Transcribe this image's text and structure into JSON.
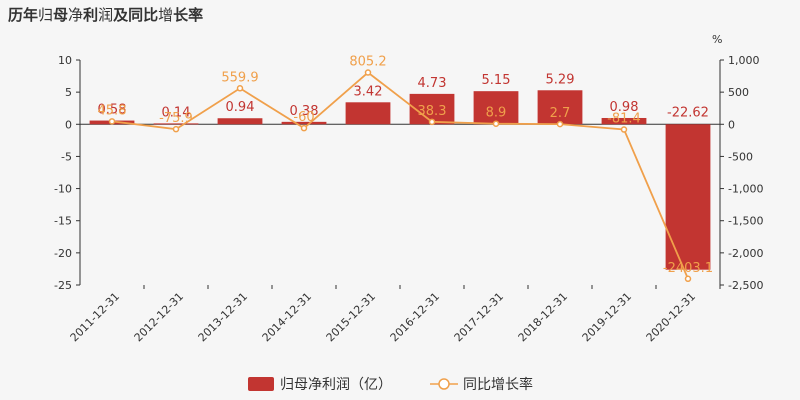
{
  "chart_data": {
    "type": "bar+line",
    "title_parts": [
      {
        "text": "历年",
        "bold": true
      },
      {
        "text": "归",
        "bold": false
      },
      {
        "text": "母",
        "bold": true
      },
      {
        "text": "净",
        "bold": false
      },
      {
        "text": "利",
        "bold": true
      },
      {
        "text": "润",
        "bold": false
      },
      {
        "text": "及同比",
        "bold": true
      },
      {
        "text": "增",
        "bold": false
      },
      {
        "text": "长率",
        "bold": true
      }
    ],
    "categories": [
      "2011-12-31",
      "2012-12-31",
      "2013-12-31",
      "2014-12-31",
      "2015-12-31",
      "2016-12-31",
      "2017-12-31",
      "2018-12-31",
      "2019-12-31",
      "2020-12-31"
    ],
    "series": [
      {
        "name": "归母净利润（亿）",
        "type": "bar",
        "axis": "left",
        "color": "#c23531",
        "values": [
          0.58,
          0.14,
          0.94,
          0.38,
          3.42,
          4.73,
          5.15,
          5.29,
          0.98,
          -22.62
        ],
        "labels": [
          "0.58",
          "0.14",
          "0.94",
          "0.38",
          "3.42",
          "4.73",
          "5.15",
          "5.29",
          "0.98",
          "-22.62"
        ]
      },
      {
        "name": "同比增长率",
        "type": "line",
        "axis": "right",
        "color": "#f0a04b",
        "values": [
          45.8,
          -75.9,
          559.9,
          -60,
          805.2,
          38.3,
          8.9,
          2.7,
          -81.4,
          -2403.1
        ],
        "labels": [
          "45.8",
          "-75.9",
          "559.9",
          "-60",
          "805.2",
          "38.3",
          "8.9",
          "2.7",
          "-81.4",
          "-2403.1"
        ]
      }
    ],
    "y_left": {
      "range": [
        -25,
        10
      ],
      "ticks": [
        "10",
        "5",
        "0",
        "-5",
        "-10",
        "-15",
        "-20",
        "-25"
      ],
      "tick_values": [
        10,
        5,
        0,
        -5,
        -10,
        -15,
        -20,
        -25
      ]
    },
    "y_right": {
      "label": "%",
      "range": [
        -2500,
        1000
      ],
      "ticks": [
        "1,000",
        "500",
        "0",
        "-500",
        "-1,000",
        "-1,500",
        "-2,000",
        "-2,500"
      ],
      "tick_values": [
        1000,
        500,
        0,
        -500,
        -1000,
        -1500,
        -2000,
        -2500
      ]
    },
    "grid": false,
    "legend_position": "bottom-center"
  }
}
